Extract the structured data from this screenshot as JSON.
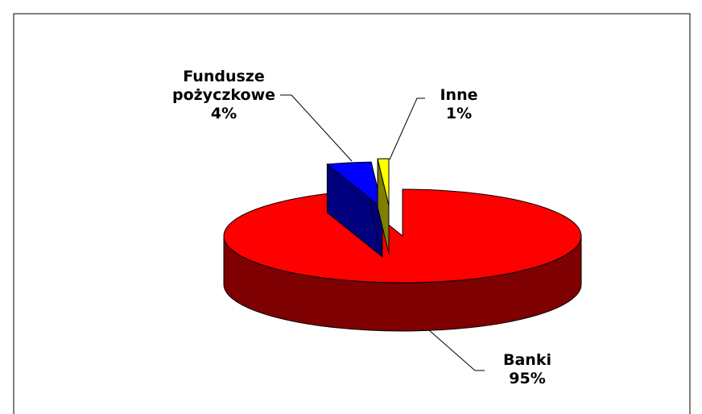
{
  "chart_data": {
    "type": "pie3d",
    "categories": [
      "Banki",
      "Fundusze pożyczkowe",
      "Inne"
    ],
    "values": [
      95,
      4,
      1
    ],
    "value_labels": [
      "95%",
      "4%",
      "1%"
    ],
    "colors": [
      "#ff0000",
      "#0000ff",
      "#ffff00"
    ]
  }
}
